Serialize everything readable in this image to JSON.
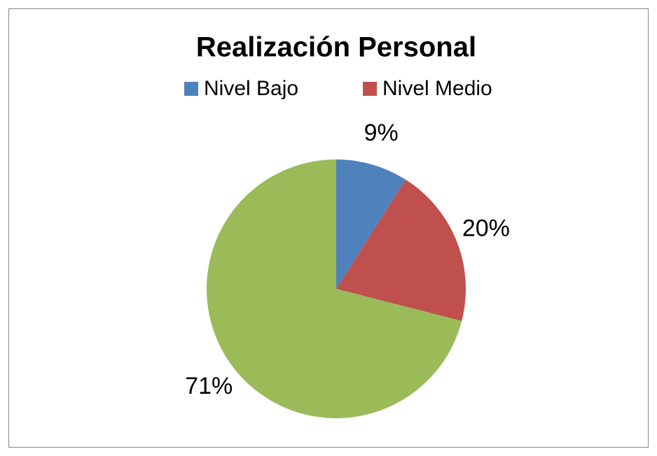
{
  "chart_data": {
    "type": "pie",
    "title": "Realización Personal",
    "categories": [
      "Nivel Bajo",
      "Nivel Medio",
      null
    ],
    "values": [
      9,
      20,
      71
    ],
    "value_labels": [
      "9%",
      "20%",
      "71%"
    ],
    "colors": [
      "#4f81bd",
      "#c0504d",
      "#9bbb59"
    ],
    "legend": "top"
  }
}
